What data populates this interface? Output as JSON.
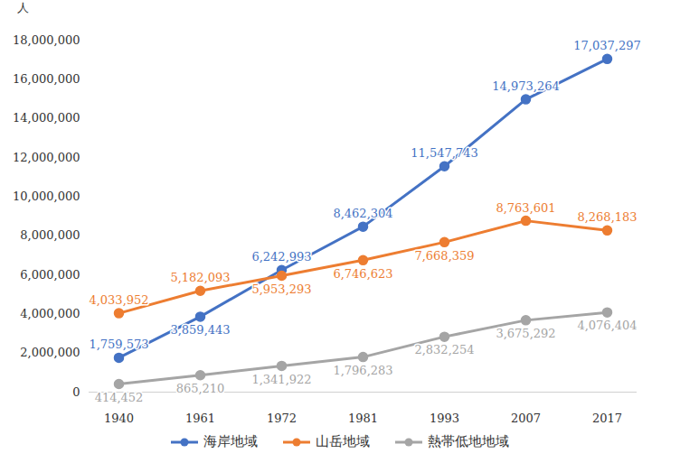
{
  "chart_data": {
    "type": "line",
    "ylabel": "人",
    "categories": [
      "1940",
      "1961",
      "1972",
      "1981",
      "1993",
      "2007",
      "2017"
    ],
    "series": [
      {
        "name": "海岸地域",
        "color": "#4472C4",
        "marker": "circle",
        "values": [
          1759573,
          3859443,
          6242993,
          8462304,
          11547743,
          14973264,
          17037297
        ],
        "value_labels": [
          "1,759,573",
          "3,859,443",
          "6,242,993",
          "8,462,304",
          "11,547,743",
          "14,973,264",
          "17,037,297"
        ]
      },
      {
        "name": "山岳地域",
        "color": "#ED7D31",
        "marker": "circle",
        "values": [
          4033952,
          5182093,
          5953293,
          6746623,
          7668359,
          8763601,
          8268183
        ],
        "value_labels": [
          "4,033,952",
          "5,182,093",
          "5,953,293",
          "6,746,623",
          "7,668,359",
          "8,763,601",
          "8,268,183"
        ]
      },
      {
        "name": "熱帯低地地域",
        "color": "#A5A5A5",
        "marker": "circle",
        "values": [
          414452,
          865210,
          1341922,
          1796283,
          2832254,
          3675292,
          4076404
        ],
        "value_labels": [
          "414,452",
          "865,210",
          "1,341,922",
          "1,796,283",
          "2,832,254",
          "3,675,292",
          "4,076,404"
        ]
      }
    ],
    "ylim": [
      0,
      18000000
    ],
    "yticks": [
      0,
      {
        "value": 2000000,
        "label": "2,000,000"
      },
      {
        "value": 4000000,
        "label": "4,000,000"
      },
      {
        "value": 6000000,
        "label": "6,000,000"
      },
      {
        "value": 8000000,
        "label": "8,000,000"
      },
      {
        "value": 10000000,
        "label": "10,000,000"
      },
      {
        "value": 12000000,
        "label": "12,000,000"
      },
      {
        "value": 14000000,
        "label": "14,000,000"
      },
      {
        "value": 16000000,
        "label": "16,000,000"
      },
      {
        "value": 18000000,
        "label": "18,000,000"
      }
    ],
    "grid": false,
    "legend": "bottom",
    "data_labels": true
  }
}
